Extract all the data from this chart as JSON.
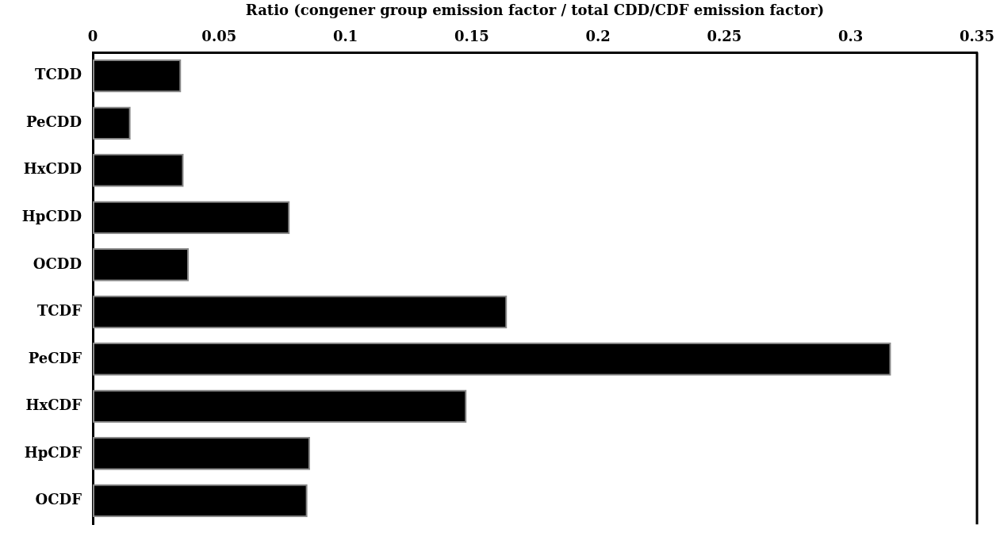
{
  "chart_data": {
    "type": "bar",
    "orientation": "horizontal",
    "xlabel": "Ratio (congener group emission factor / total CDD/CDF emission factor)",
    "categories": [
      "TCDD",
      "PeCDD",
      "HxCDD",
      "HpCDD",
      "OCDD",
      "TCDF",
      "PeCDF",
      "HxCDF",
      "HpCDF",
      "OCDF"
    ],
    "values": [
      0.035,
      0.015,
      0.036,
      0.078,
      0.038,
      0.164,
      0.316,
      0.148,
      0.086,
      0.085
    ],
    "color": "#000000",
    "xlim": [
      0,
      0.35
    ],
    "xticks": [
      0,
      0.05,
      0.1,
      0.15,
      0.2,
      0.25,
      0.3,
      0.35
    ],
    "grid": false,
    "legend": false
  }
}
